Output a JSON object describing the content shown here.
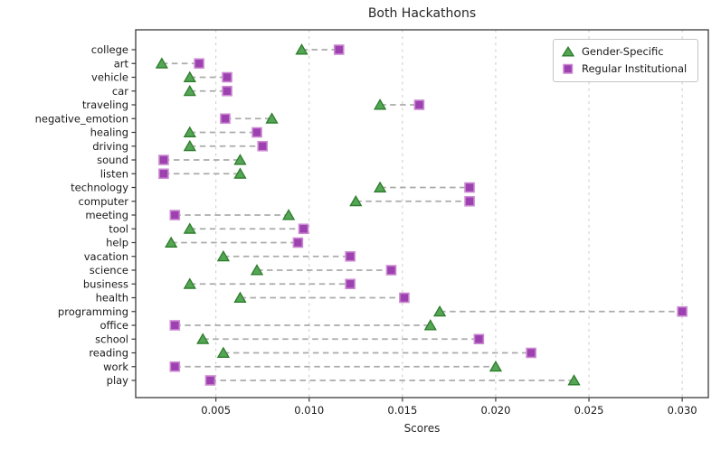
{
  "chart_data": {
    "type": "dumbbell-scatter",
    "title": "Both Hackathons",
    "xlabel": "Scores",
    "categories": [
      "college",
      "art",
      "vehicle",
      "car",
      "traveling",
      "negative_emotion",
      "healing",
      "driving",
      "sound",
      "listen",
      "technology",
      "computer",
      "meeting",
      "tool",
      "help",
      "vacation",
      "science",
      "business",
      "health",
      "programming",
      "office",
      "school",
      "reading",
      "work",
      "play"
    ],
    "series": [
      {
        "name": "Gender-Specific",
        "marker": "triangle",
        "fill": "#54a554",
        "edge": "#2c7c2c",
        "values": [
          0.0096,
          0.0021,
          0.0036,
          0.0036,
          0.0138,
          0.008,
          0.0036,
          0.0036,
          0.0063,
          0.0063,
          0.0138,
          0.0125,
          0.0089,
          0.0036,
          0.0026,
          0.0054,
          0.0072,
          0.0036,
          0.0063,
          0.017,
          0.0165,
          0.0043,
          0.0054,
          0.02,
          0.0242
        ]
      },
      {
        "name": "Regular Institutional",
        "marker": "square",
        "fill": "#9d40b0",
        "edge": "#cb8ad1",
        "values": [
          0.0116,
          0.0041,
          0.0056,
          0.0056,
          0.0159,
          0.0055,
          0.0072,
          0.0075,
          0.0022,
          0.0022,
          0.0186,
          0.0186,
          0.0028,
          0.0097,
          0.0094,
          0.0122,
          0.0144,
          0.0122,
          0.0151,
          0.03,
          0.0028,
          0.0191,
          0.0219,
          0.0028,
          0.0047
        ]
      }
    ],
    "xticks": [
      0.005,
      0.01,
      0.015,
      0.02,
      0.025,
      0.03
    ],
    "xlim": [
      0.0007,
      0.0314
    ],
    "grid": "vertical dashed",
    "legend_position": "upper right",
    "colors": {
      "grid": "#c9c9c9",
      "connector": "#ababab",
      "spine": "#3a3a3a",
      "text": "#1a1a1a"
    }
  }
}
